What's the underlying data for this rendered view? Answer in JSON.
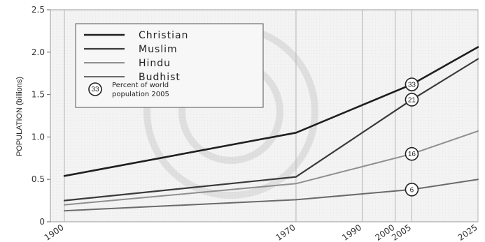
{
  "chart_data": {
    "type": "line",
    "ylabel": "POPULATION (billions)",
    "xlabel": "",
    "ylim": [
      0,
      2.5
    ],
    "yticks": [
      "0",
      "0.5",
      "1.0",
      "1.5",
      "2.0",
      "2.5"
    ],
    "x": [
      "1900",
      "1970",
      "1990",
      "2000",
      "2005",
      "2025"
    ],
    "grid": "vertical lines at x ticks",
    "legend_position": "top-left",
    "series": [
      {
        "name": "Christian",
        "color": "#1f1f1f",
        "values": [
          0.54,
          1.05,
          null,
          null,
          1.62,
          2.06
        ]
      },
      {
        "name": "Muslim",
        "color": "#3a3a3a",
        "values": [
          0.25,
          0.53,
          null,
          null,
          1.44,
          1.92
        ]
      },
      {
        "name": "Hindu",
        "color": "#8f8f8f",
        "values": [
          0.2,
          0.45,
          null,
          null,
          0.8,
          1.07
        ]
      },
      {
        "name": "Budhist",
        "color": "#6a6a6a",
        "values": [
          0.13,
          0.26,
          null,
          null,
          0.38,
          0.5
        ]
      }
    ],
    "annotation_legend": "Percent of world population 2005",
    "markers": [
      {
        "series": "Christian",
        "x": "2005",
        "label": "33"
      },
      {
        "series": "Muslim",
        "x": "2005",
        "label": "21"
      },
      {
        "series": "Hindu",
        "x": "2005",
        "label": "16"
      },
      {
        "series": "Budhist",
        "x": "2005",
        "label": "6"
      }
    ]
  }
}
